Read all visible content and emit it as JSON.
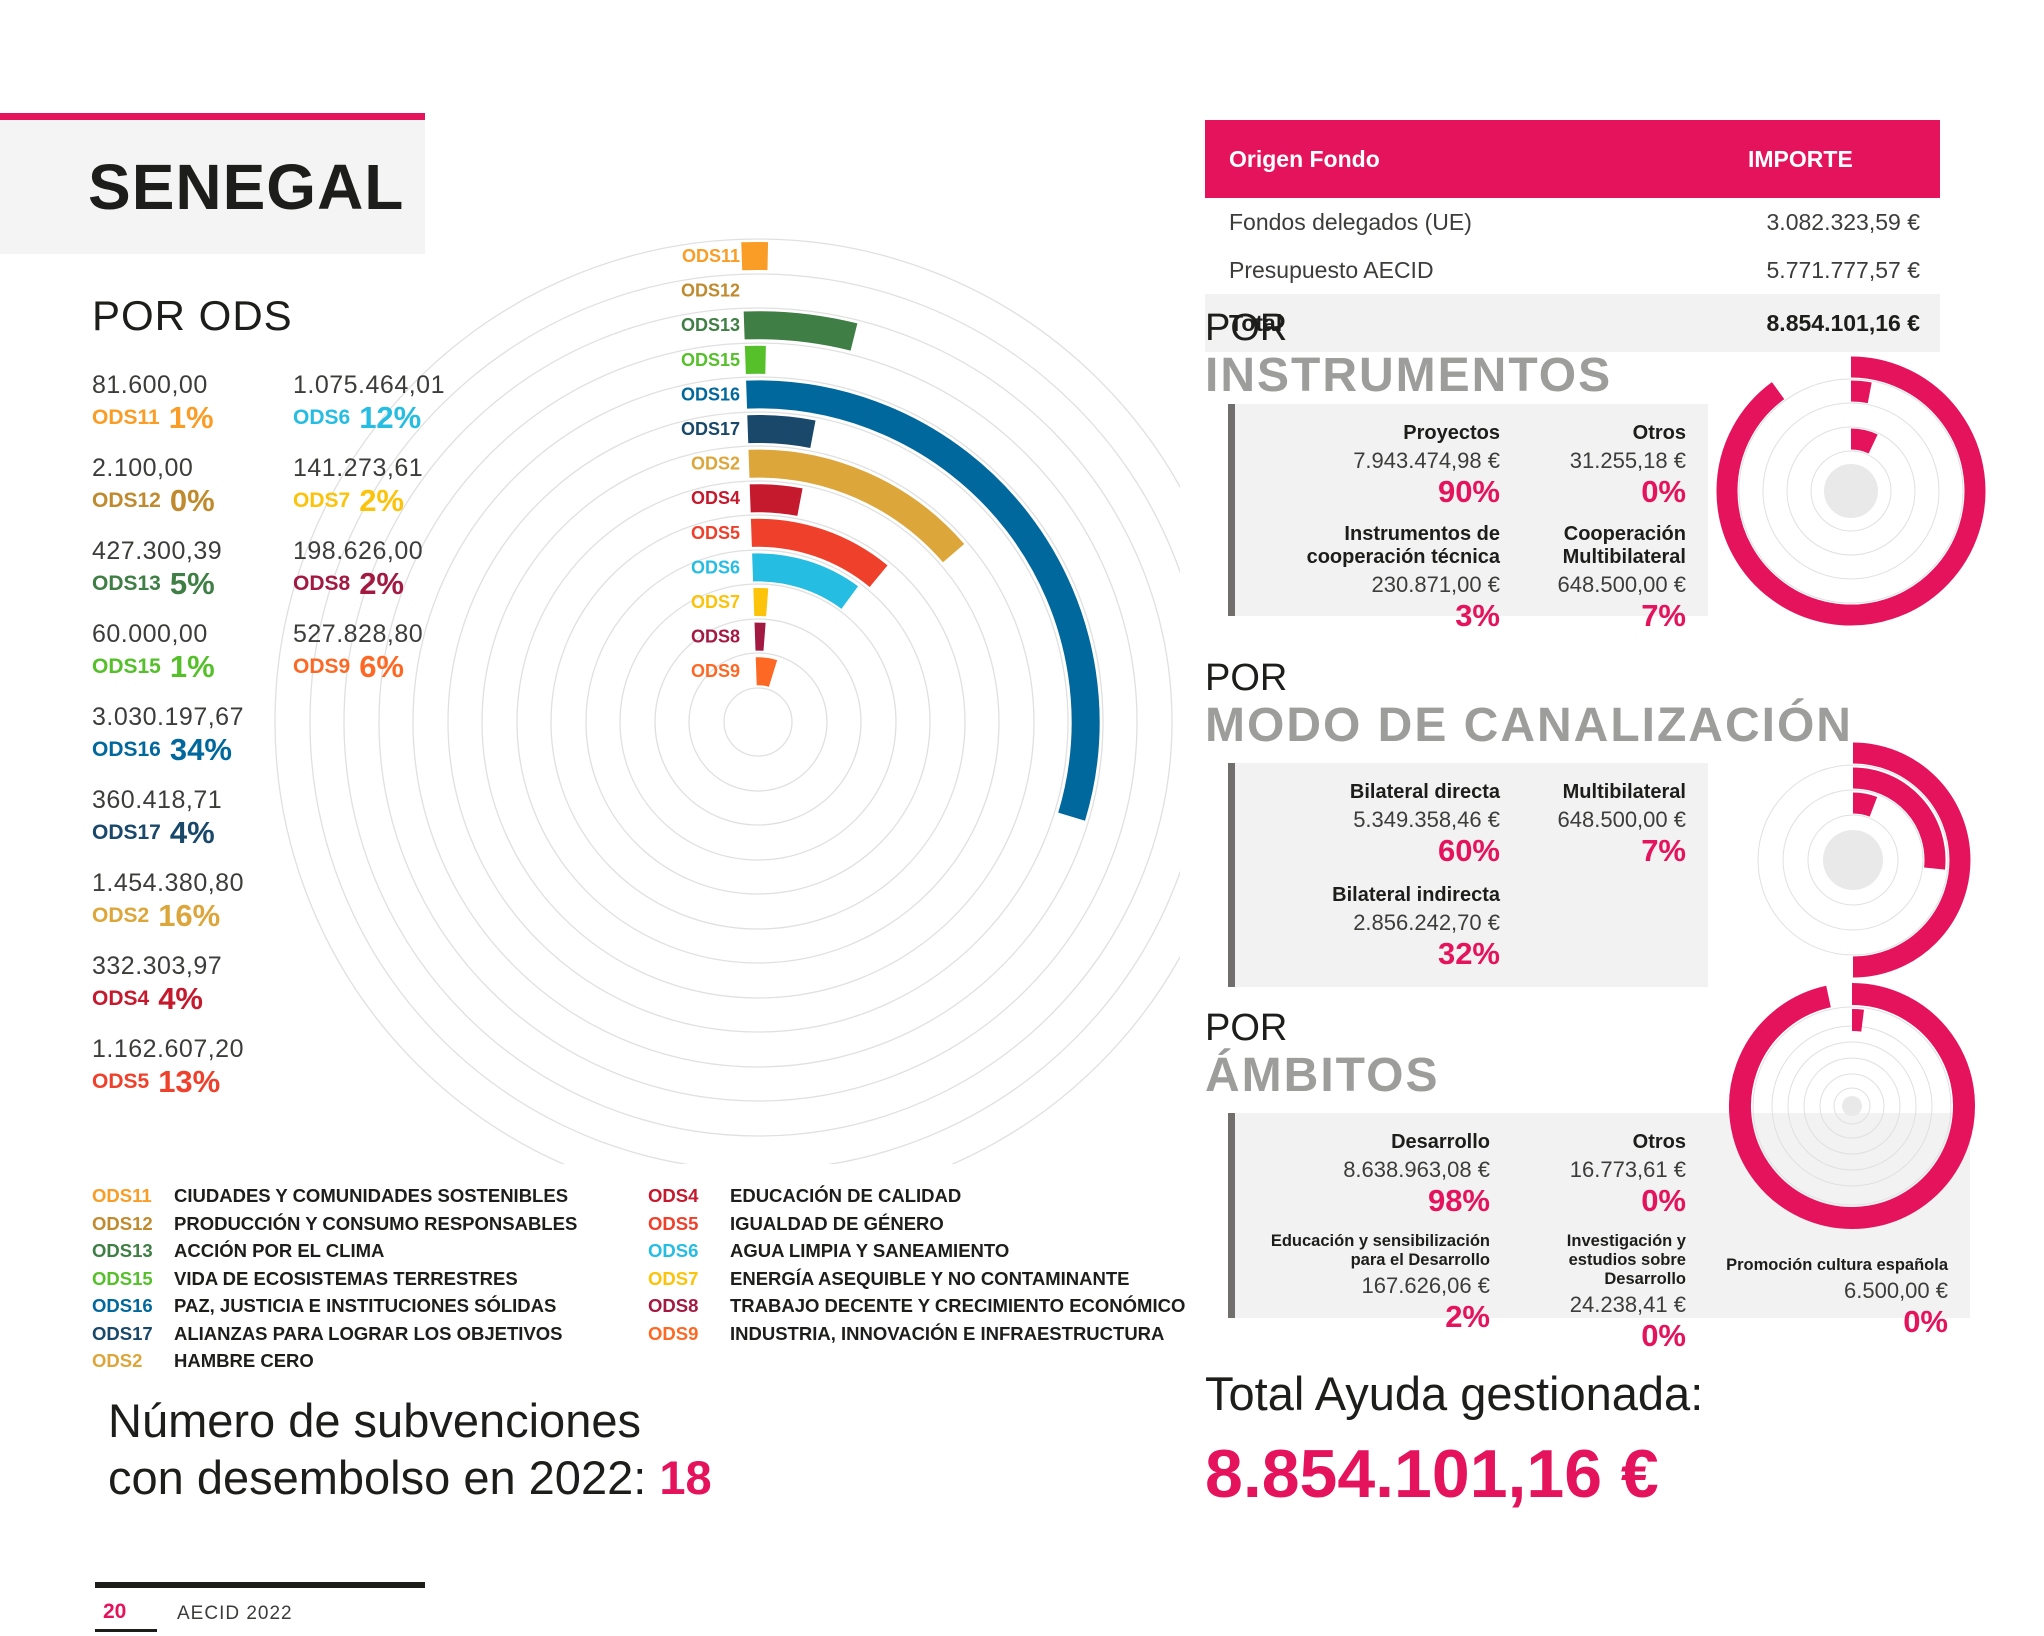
{
  "header": {
    "country": "SENEGAL"
  },
  "colors": {
    "accent": "#E4135C",
    "heading_gray": "#9D9D9C",
    "panel_gray": "#F2F2F2",
    "grid_gray": "#E0E0E0"
  },
  "por_ods": {
    "title": "POR ODS",
    "stats_left": [
      {
        "code": "ODS11",
        "value": "81.600,00",
        "pct": "1%",
        "color": "#F99D26"
      },
      {
        "code": "ODS12",
        "value": "2.100,00",
        "pct": "0%",
        "color": "#BF8B2E"
      },
      {
        "code": "ODS13",
        "value": "427.300,39",
        "pct": "5%",
        "color": "#3F7E44"
      },
      {
        "code": "ODS15",
        "value": "60.000,00",
        "pct": "1%",
        "color": "#56C02B"
      },
      {
        "code": "ODS16",
        "value": "3.030.197,67",
        "pct": "34%",
        "color": "#00689D"
      },
      {
        "code": "ODS17",
        "value": "360.418,71",
        "pct": "4%",
        "color": "#19486A"
      },
      {
        "code": "ODS2",
        "value": "1.454.380,80",
        "pct": "16%",
        "color": "#DDA63A"
      },
      {
        "code": "ODS4",
        "value": "332.303,97",
        "pct": "4%",
        "color": "#C5192D"
      },
      {
        "code": "ODS5",
        "value": "1.162.607,20",
        "pct": "13%",
        "color": "#EF402B"
      }
    ],
    "stats_right": [
      {
        "code": "ODS6",
        "value": "1.075.464,01",
        "pct": "12%",
        "color": "#26BDE2"
      },
      {
        "code": "ODS7",
        "value": "141.273,61",
        "pct": "2%",
        "color": "#FCC30B"
      },
      {
        "code": "ODS8",
        "value": "198.626,00",
        "pct": "2%",
        "color": "#A21942"
      },
      {
        "code": "ODS9",
        "value": "527.828,80",
        "pct": "6%",
        "color": "#FD6925"
      }
    ]
  },
  "legend": {
    "col1": [
      {
        "code": "ODS11",
        "label": "CIUDADES Y COMUNIDADES SOSTENIBLES",
        "color": "#F99D26"
      },
      {
        "code": "ODS12",
        "label": "PRODUCCIÓN Y CONSUMO RESPONSABLES",
        "color": "#BF8B2E"
      },
      {
        "code": "ODS13",
        "label": "ACCIÓN POR EL CLIMA",
        "color": "#3F7E44"
      },
      {
        "code": "ODS15",
        "label": "VIDA DE ECOSISTEMAS TERRESTRES",
        "color": "#56C02B"
      },
      {
        "code": "ODS16",
        "label": "PAZ, JUSTICIA E INSTITUCIONES SÓLIDAS",
        "color": "#00689D"
      },
      {
        "code": "ODS17",
        "label": "ALIANZAS PARA LOGRAR LOS OBJETIVOS",
        "color": "#19486A"
      },
      {
        "code": "ODS2",
        "label": "HAMBRE CERO",
        "color": "#DDA63A"
      }
    ],
    "col2": [
      {
        "code": "ODS4",
        "label": "EDUCACIÓN DE CALIDAD",
        "color": "#C5192D"
      },
      {
        "code": "ODS5",
        "label": "IGUALDAD DE GÉNERO",
        "color": "#EF402B"
      },
      {
        "code": "ODS6",
        "label": "AGUA LIMPIA Y SANEAMIENTO",
        "color": "#26BDE2"
      },
      {
        "code": "ODS7",
        "label": "ENERGÍA ASEQUIBLE Y NO CONTAMINANTE",
        "color": "#FCC30B"
      },
      {
        "code": "ODS8",
        "label": "TRABAJO DECENTE Y CRECIMIENTO ECONÓMICO",
        "color": "#A21942"
      },
      {
        "code": "ODS9",
        "label": "INDUSTRIA, INNOVACIÓN E INFRAESTRUCTURA",
        "color": "#FD6925"
      }
    ]
  },
  "funding_table": {
    "header": {
      "origen": "Origen Fondo",
      "importe": "IMPORTE"
    },
    "rows": [
      {
        "label": "Fondos delegados (UE)",
        "amount": "3.082.323,59 €"
      },
      {
        "label": "Presupuesto AECID",
        "amount": "5.771.777,57 €"
      }
    ],
    "total": {
      "label": "Total",
      "amount": "8.854.101,16 €"
    }
  },
  "sections": {
    "instrumentos": {
      "kicker": "POR",
      "title": "INSTRUMENTOS",
      "blocks": [
        {
          "label": "Proyectos",
          "amount": "7.943.474,98 €",
          "pct": "90%"
        },
        {
          "label": "Otros",
          "amount": "31.255,18 €",
          "pct": "0%"
        },
        {
          "label": "Instrumentos de cooperación técnica",
          "amount": "230.871,00 €",
          "pct": "3%"
        },
        {
          "label": "Cooperación Multibilateral",
          "amount": "648.500,00 €",
          "pct": "7%"
        }
      ]
    },
    "canalizacion": {
      "kicker": "POR",
      "title": "MODO DE CANALIZACIÓN",
      "blocks": [
        {
          "label": "Bilateral directa",
          "amount": "5.349.358,46 €",
          "pct": "60%"
        },
        {
          "label": "Multibilateral",
          "amount": "648.500,00 €",
          "pct": "7%"
        },
        {
          "label": "Bilateral indirecta",
          "amount": "2.856.242,70 €",
          "pct": "32%"
        }
      ]
    },
    "ambitos": {
      "kicker": "POR",
      "title": "ÁMBITOS",
      "blocks": [
        {
          "label": "Desarrollo",
          "amount": "8.638.963,08 €",
          "pct": "98%"
        },
        {
          "label": "Otros",
          "amount": "16.773,61 €",
          "pct": "0%"
        },
        {
          "label": "Educación y sensibilización para el Desarrollo",
          "amount": "167.626,06 €",
          "pct": "2%"
        },
        {
          "label": "Investigación y estudios sobre Desarrollo",
          "amount": "24.238,41 €",
          "pct": "0%"
        },
        {
          "label": "Promoción cultura española",
          "amount": "6.500,00 €",
          "pct": "0%"
        }
      ]
    }
  },
  "subvenciones": {
    "line1": "Número de subvenciones",
    "line2": "con desembolso en 2022:",
    "count": "18"
  },
  "total_ayuda": {
    "label": "Total Ayuda gestionada:",
    "amount": "8.854.101,16 €"
  },
  "footer": {
    "page": "20",
    "brand": "AECID 2022"
  },
  "chart_data": [
    {
      "id": "por-ods-radial",
      "type": "radial-bar",
      "title": "POR ODS",
      "categories": [
        "ODS11",
        "ODS12",
        "ODS13",
        "ODS15",
        "ODS16",
        "ODS17",
        "ODS2",
        "ODS4",
        "ODS5",
        "ODS6",
        "ODS7",
        "ODS8",
        "ODS9"
      ],
      "values": [
        1,
        0,
        5,
        1,
        34,
        4,
        16,
        4,
        13,
        12,
        2,
        2,
        6
      ],
      "unit": "%",
      "colors": [
        "#F99D26",
        "#BF8B2E",
        "#3F7E44",
        "#56C02B",
        "#00689D",
        "#19486A",
        "#DDA63A",
        "#C5192D",
        "#EF402B",
        "#26BDE2",
        "#FCC30B",
        "#A21942",
        "#FD6925"
      ],
      "ring_order": "outer-to-inner",
      "start_angle": "12-oclock",
      "sweep_direction": "clockwise",
      "grid": "concentric-circles"
    },
    {
      "id": "instrumentos-radial",
      "type": "radial-bar",
      "title": "POR INSTRUMENTOS",
      "categories": [
        "Proyectos",
        "Instrumentos de cooperación técnica",
        "Otros",
        "Cooperación Multibilateral"
      ],
      "values": [
        90,
        3,
        0,
        7
      ],
      "unit": "%",
      "ring_order": "outer-to-inner",
      "start_angle": "12-oclock",
      "sweep_direction": "clockwise"
    },
    {
      "id": "canalizacion-radial",
      "type": "radial-bar",
      "title": "POR MODO DE CANALIZACIÓN",
      "categories": [
        "Bilateral directa",
        "Bilateral indirecta",
        "Multibilateral"
      ],
      "values": [
        60,
        32,
        7
      ],
      "unit": "%",
      "ring_order": "outer-to-inner",
      "start_angle": "12-oclock",
      "sweep_direction": "clockwise"
    },
    {
      "id": "ambitos-radial",
      "type": "radial-bar",
      "title": "POR ÁMBITOS",
      "categories": [
        "Desarrollo",
        "Educación y sensibilización para el Desarrollo",
        "Investigación y estudios sobre Desarrollo",
        "Promoción cultura española",
        "Otros"
      ],
      "values": [
        98,
        2,
        0,
        0,
        0
      ],
      "unit": "%",
      "ring_order": "outer-to-inner",
      "start_angle": "12-oclock",
      "sweep_direction": "clockwise"
    }
  ]
}
